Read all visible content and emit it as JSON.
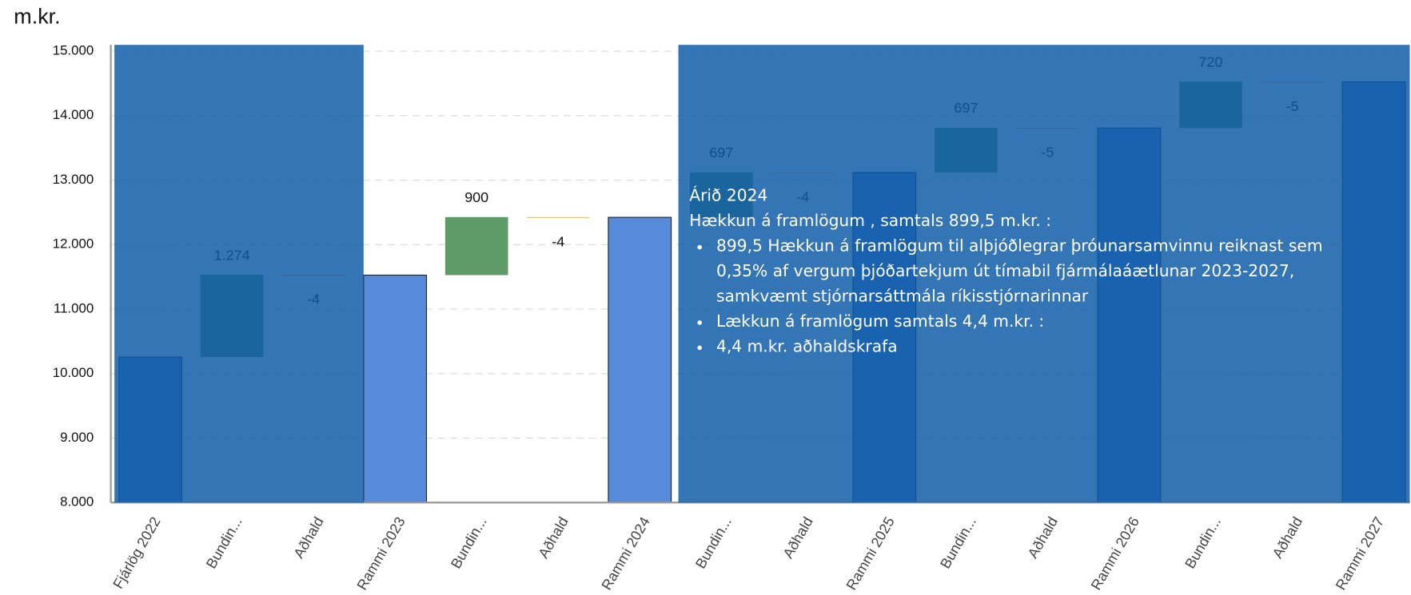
{
  "chart_data": {
    "type": "waterfall",
    "y_axis_label": "m.kr.",
    "categories": [
      "Fjárlög 2022",
      "Bundin...",
      "Aðhald",
      "Rammi 2023",
      "Bundin...",
      "Aðhald",
      "Rammi 2024",
      "Bundin...",
      "Aðhald",
      "Rammi 2025",
      "Bundin...",
      "Aðhald",
      "Rammi 2026",
      "Bundin...",
      "Aðhald",
      "Rammi 2027"
    ],
    "measure": [
      "absolute",
      "relative",
      "relative",
      "absolute",
      "relative",
      "relative",
      "absolute",
      "relative",
      "relative",
      "absolute",
      "relative",
      "relative",
      "absolute",
      "relative",
      "relative",
      "absolute"
    ],
    "values": [
      10257,
      1274,
      -4,
      11527,
      900,
      -4,
      12423,
      697,
      -4,
      13116,
      697,
      -5,
      13808,
      720,
      -5,
      14523
    ],
    "value_labels": [
      null,
      "1.274",
      "-4",
      null,
      "900",
      "-4",
      null,
      "697",
      "-4",
      null,
      "697",
      "-5",
      null,
      "720",
      "-5",
      null
    ],
    "colors": {
      "total": "#568bd9",
      "increase": "#5f9a69",
      "decrease": "#f2c14e"
    },
    "ylim": [
      8000,
      15000
    ],
    "yticks": [
      {
        "value": 8000,
        "label": "8.000"
      },
      {
        "value": 9000,
        "label": "9.000"
      },
      {
        "value": 10000,
        "label": "10.000"
      },
      {
        "value": 11000,
        "label": "11.000"
      },
      {
        "value": 12000,
        "label": "12.000"
      },
      {
        "value": 13000,
        "label": "13.000"
      },
      {
        "value": 14000,
        "label": "14.000"
      },
      {
        "value": 15000,
        "label": "15.000"
      }
    ],
    "grid": true,
    "tooltip": {
      "title": "Árið 2024",
      "subtitle": "Hækkun á framlögum , samtals 899,5 m.kr. :",
      "bullets": [
        "899,5 Hækkun á framlögum til alþjóðlegrar þróunarsamvinnu reiknast sem 0,35% af vergum þjóðartekjum út tímabil fjármálaáætlunar 2023-2027, samkvæmt stjórnarsáttmála ríkisstjórnarinnar",
        "Lækkun á framlögum samtals 4,4 m.kr. :",
        "4,4 m.kr. aðhaldskrafa"
      ]
    }
  }
}
